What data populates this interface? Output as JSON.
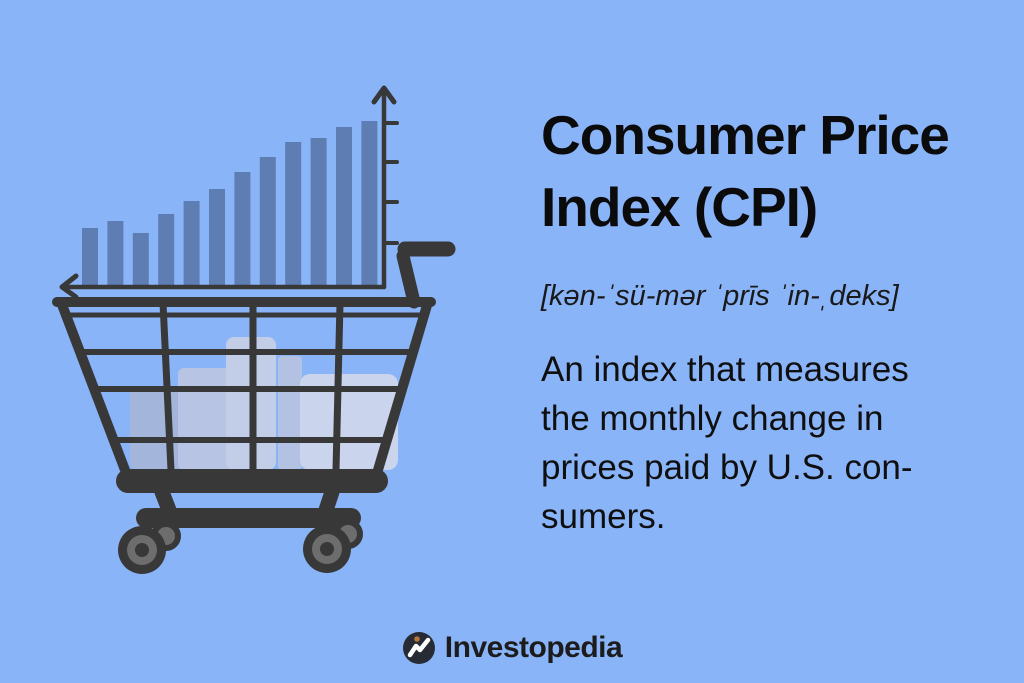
{
  "page": {
    "background_color": "#8ab4f8"
  },
  "card": {
    "title": "Consumer Price Index (CPI)",
    "title_lines": [
      "Consumer Price",
      "Index (CPI)"
    ],
    "pronunciation": "[kən-ˈsü-mər ˈprīs ˈin-ˌdeks]",
    "definition": "An index that measures the monthly change in prices paid by U.S. consumers.",
    "definition_lines": [
      "An index that measures",
      "the monthly change in",
      "prices paid by U.S. con-",
      "sumers."
    ],
    "text_color": "#0b0b0b"
  },
  "footer": {
    "brand": "Investopedia",
    "logo_icon": "investopedia-circle-i-icon",
    "logo_circle_color": "#272b33",
    "logo_swoosh_color": "#ffffff",
    "logo_dot_color": "#b5763f",
    "brand_color": "#1c1c1c"
  },
  "illustration": {
    "description": "Rising bar chart with arrowed axes above a dark wireframe shopping cart filled with translucent grocery shapes",
    "line_color": "#383838",
    "bar_color": "#5d7db3",
    "wheel_ring_color": "#6d6d6d",
    "cart_items_colors": [
      "#a3b5da",
      "#b7c4e3",
      "#c2cde8",
      "#b3c1e2",
      "#cad4ec"
    ]
  },
  "chart_data": {
    "type": "bar",
    "title": "",
    "xlabel": "",
    "ylabel": "",
    "values": [
      57,
      64,
      52,
      71,
      84,
      96,
      113,
      128,
      143,
      147,
      158,
      164
    ],
    "ylim": [
      0,
      180
    ],
    "axis_tick_count": 4,
    "tick_labels_visible": false,
    "grid": false,
    "legend": "none",
    "note": "Decorative unlabeled bar chart; 12 bars trending upward; vertical axis on right with up arrow and 4 tick marks, horizontal axis with left arrow"
  }
}
